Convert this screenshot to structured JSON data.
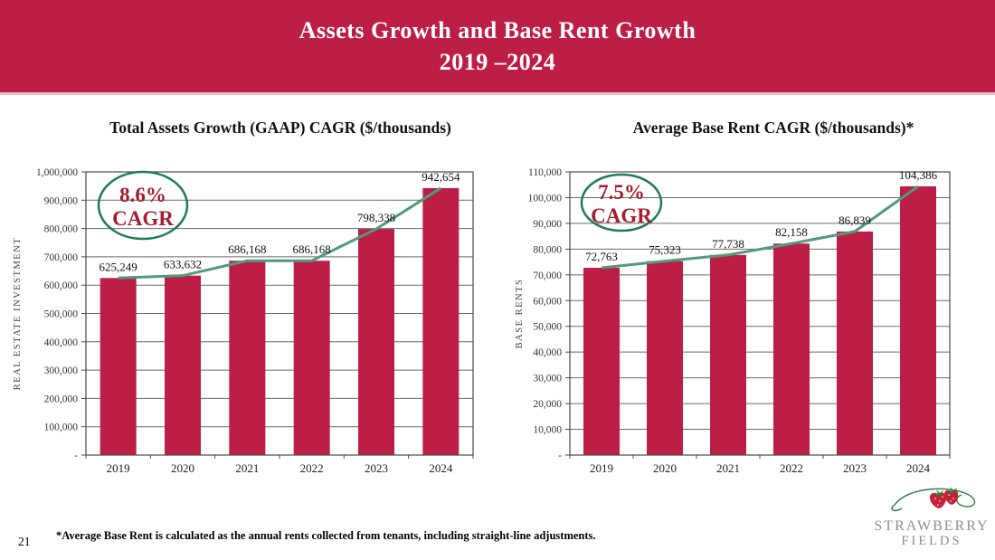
{
  "slide": {
    "title_line1": "Assets Growth and Base Rent Growth",
    "title_line2": "2019 –2024",
    "page_number": "21",
    "footnote": "*Average Base Rent is calculated as the annual rents collected from tenants, including straight-line adjustments.",
    "logo": {
      "line1": "STRAWBERRY",
      "line2": "FIELDS"
    }
  },
  "colors": {
    "banner": "#BD1E46",
    "bar": "#BD1E46",
    "trend_line": "#4F9B7B",
    "oval_stroke": "#1F7C52",
    "cagr_text": "#A31D2C",
    "gridline": "#6a6a6a",
    "axis": "#4a4a4a",
    "logo_gray": "#8F8F8F"
  },
  "chart_data": [
    {
      "type": "bar",
      "name": "total-assets-growth",
      "title": "Total Assets Growth (GAAP) CAGR ($/thousands)",
      "ylabel": "REAL ESTATE  INVESTMENT",
      "categories": [
        "2019",
        "2020",
        "2021",
        "2022",
        "2023",
        "2024"
      ],
      "values": [
        625249,
        633632,
        686168,
        686168,
        798338,
        942654
      ],
      "value_labels": [
        "625,249",
        "633,632",
        "686,168",
        "686,168",
        "798,338",
        "942,654"
      ],
      "ylim": [
        0,
        1000000
      ],
      "ytick_step": 100000,
      "ytick_labels": [
        "1,000,000",
        "900,000",
        "800,000",
        "700,000",
        "600,000",
        "500,000",
        "400,000",
        "300,000",
        "200,000",
        "100,000",
        "-"
      ],
      "grid": true,
      "legend": "none",
      "overlay_line_series": "same-as-bars",
      "cagr": {
        "percent": "8.6%",
        "label": "CAGR"
      }
    },
    {
      "type": "bar",
      "name": "average-base-rent",
      "title": "Average Base Rent CAGR ($/thousands)*",
      "ylabel": "BASE RENTS",
      "categories": [
        "2019",
        "2020",
        "2021",
        "2022",
        "2023",
        "2024"
      ],
      "values": [
        72763,
        75323,
        77738,
        82158,
        86839,
        104386
      ],
      "value_labels": [
        "72,763",
        "75,323",
        "77,738",
        "82,158",
        "86,839",
        "104,386"
      ],
      "ylim": [
        0,
        110000
      ],
      "ytick_step": 10000,
      "ytick_labels": [
        "110,000",
        "100,000",
        "90,000",
        "80,000",
        "70,000",
        "60,000",
        "50,000",
        "40,000",
        "30,000",
        "20,000",
        "10,000",
        "-"
      ],
      "grid": true,
      "legend": "none",
      "overlay_line_series": "same-as-bars",
      "cagr": {
        "percent": "7.5%",
        "label": "CAGR"
      }
    }
  ]
}
